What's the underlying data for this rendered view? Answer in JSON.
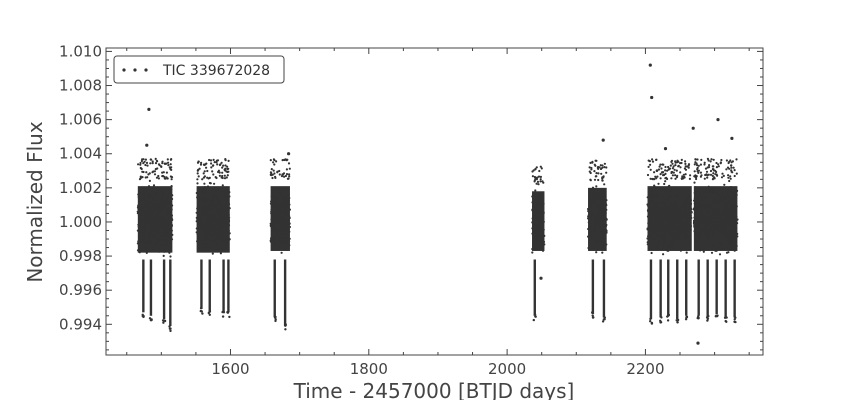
{
  "chart_data": {
    "type": "scatter",
    "title": "",
    "xlabel": "Time - 2457000 [BTJD days]",
    "ylabel": "Normalized Flux",
    "xlim": [
      1420,
      2370
    ],
    "ylim": [
      0.9922,
      1.0102
    ],
    "x_ticks": [
      1600,
      1800,
      2000,
      2200
    ],
    "x_tick_labels": [
      "1600",
      "1800",
      "2000",
      "2200"
    ],
    "y_ticks": [
      0.994,
      0.996,
      0.998,
      1.0,
      1.002,
      1.004,
      1.006,
      1.008,
      1.01
    ],
    "y_tick_labels": [
      "0.994",
      "0.996",
      "0.998",
      "1.000",
      "1.002",
      "1.004",
      "1.006",
      "1.008",
      "1.010"
    ],
    "grid": false,
    "legend_position": "top-left",
    "colors": {
      "points": "#333333",
      "axes": "#444444",
      "background": "#ffffff"
    },
    "series": [
      {
        "name": "TIC 339672028",
        "marker": "dot",
        "segments": [
          {
            "x_start": 1466,
            "x_end": 1516,
            "y_low": 0.9978,
            "y_high": 1.0025
          },
          {
            "x_start": 1551,
            "x_end": 1599,
            "y_low": 0.9978,
            "y_high": 1.0025
          },
          {
            "x_start": 1658,
            "x_end": 1686,
            "y_low": 0.9979,
            "y_high": 1.0025
          },
          {
            "x_start": 2036,
            "x_end": 2054,
            "y_low": 0.9979,
            "y_high": 1.0022
          },
          {
            "x_start": 2117,
            "x_end": 2144,
            "y_low": 0.9979,
            "y_high": 1.0024
          },
          {
            "x_start": 2203,
            "x_end": 2267,
            "y_low": 0.9979,
            "y_high": 1.0025
          },
          {
            "x_start": 2270,
            "x_end": 2333,
            "y_low": 0.9979,
            "y_high": 1.0025
          }
        ],
        "dips": [
          {
            "x": 1474,
            "y_min": 0.9944
          },
          {
            "x": 1485,
            "y_min": 0.9942
          },
          {
            "x": 1504,
            "y_min": 0.994
          },
          {
            "x": 1513,
            "y_min": 0.9936
          },
          {
            "x": 1558,
            "y_min": 0.9946
          },
          {
            "x": 1570,
            "y_min": 0.9944
          },
          {
            "x": 1590,
            "y_min": 0.9944
          },
          {
            "x": 1597,
            "y_min": 0.9944
          },
          {
            "x": 1664,
            "y_min": 0.9941
          },
          {
            "x": 1679,
            "y_min": 0.9936
          },
          {
            "x": 2040,
            "y_min": 0.9942
          },
          {
            "x": 2124,
            "y_min": 0.9943
          },
          {
            "x": 2140,
            "y_min": 0.9941
          },
          {
            "x": 2208,
            "y_min": 0.994
          },
          {
            "x": 2222,
            "y_min": 0.9941
          },
          {
            "x": 2233,
            "y_min": 0.9942
          },
          {
            "x": 2246,
            "y_min": 0.994
          },
          {
            "x": 2259,
            "y_min": 0.9942
          },
          {
            "x": 2277,
            "y_min": 0.9942
          },
          {
            "x": 2290,
            "y_min": 0.9941
          },
          {
            "x": 2303,
            "y_min": 0.9943
          },
          {
            "x": 2316,
            "y_min": 0.9941
          },
          {
            "x": 2329,
            "y_min": 0.9941
          }
        ],
        "outliers": [
          {
            "x": 1482,
            "y": 1.0066
          },
          {
            "x": 1479,
            "y": 1.0045
          },
          {
            "x": 1684,
            "y": 1.004
          },
          {
            "x": 2139,
            "y": 1.0048
          },
          {
            "x": 2207,
            "y": 1.0092
          },
          {
            "x": 2209,
            "y": 1.0073
          },
          {
            "x": 2229,
            "y": 1.0043
          },
          {
            "x": 2269,
            "y": 1.0055
          },
          {
            "x": 2305,
            "y": 1.006
          },
          {
            "x": 2325,
            "y": 1.0049
          },
          {
            "x": 2276,
            "y": 0.9929
          },
          {
            "x": 2049,
            "y": 0.9967
          }
        ]
      }
    ]
  }
}
